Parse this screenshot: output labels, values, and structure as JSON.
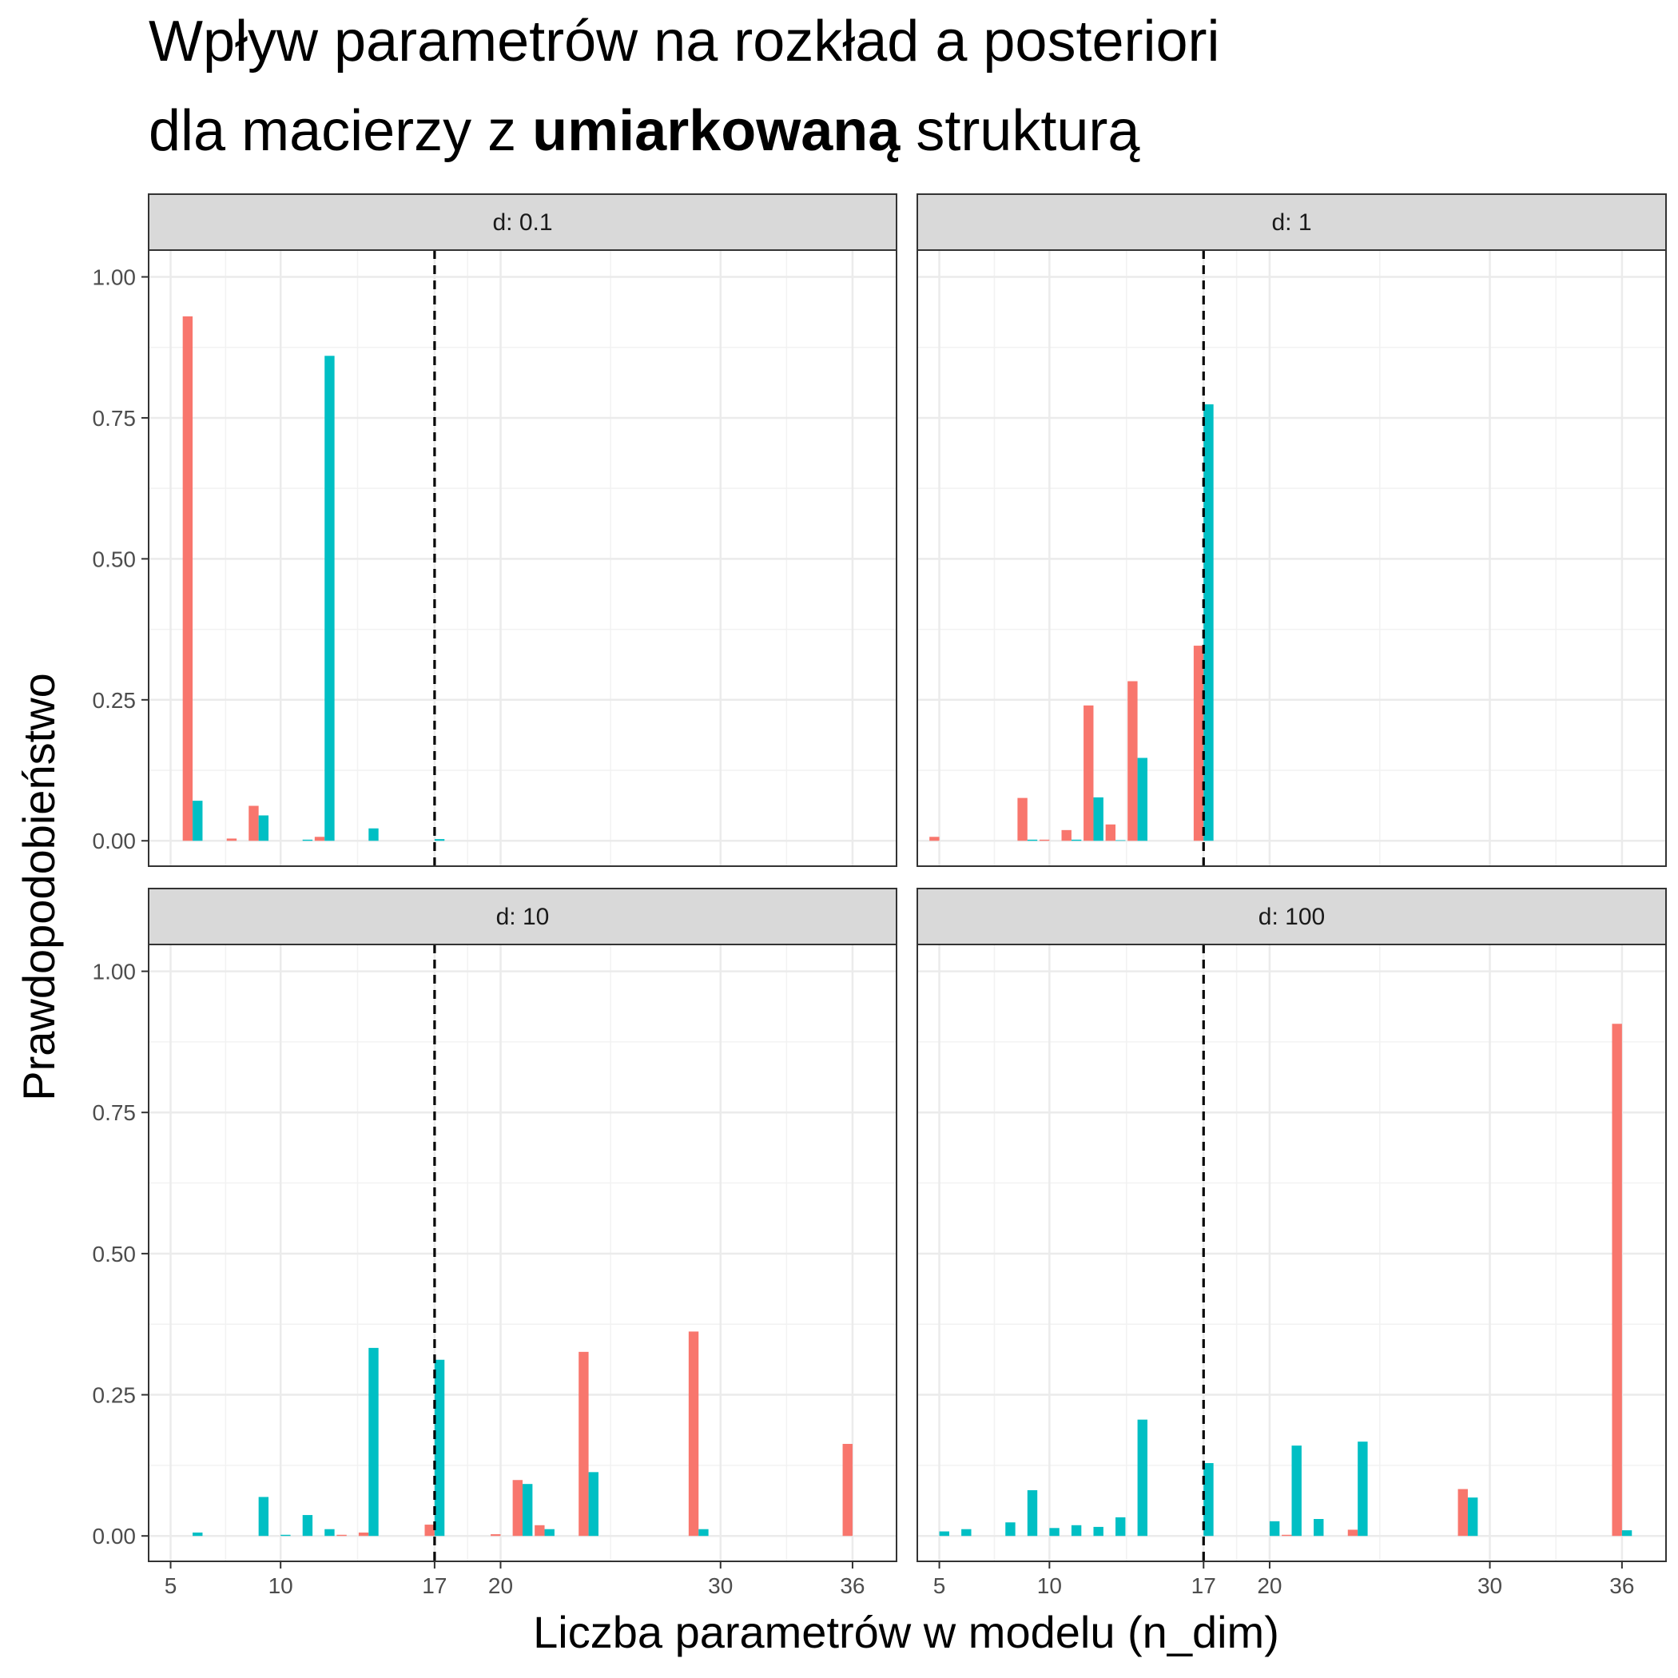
{
  "chart_data": {
    "type": "bar",
    "title_line1": "Wpływ parametrów na rozkład a posteriori",
    "title_line2_before": "dla macierzy z ",
    "title_line2_bold": "umiarkowaną",
    "title_line2_after": " strukturą",
    "xlabel": "Liczba parametrów w modelu (n_dim)",
    "ylabel": "Prawdopodobieństwo",
    "xlim": [
      4,
      38
    ],
    "ylim": [
      -0.045,
      1.0475
    ],
    "x_ticks": [
      5,
      10,
      17,
      20,
      30,
      36
    ],
    "x_tick_labels": [
      "5",
      "10",
      "17",
      "20",
      "30",
      "36"
    ],
    "y_ticks": [
      0,
      0.25,
      0.5,
      0.75,
      1.0
    ],
    "y_tick_labels": [
      "0.00",
      "0.25",
      "0.50",
      "0.75",
      "1.00"
    ],
    "reference_line_x": 17,
    "legend": "none",
    "grid": true,
    "series_colors": [
      "#F8766D",
      "#00BFC4"
    ],
    "panels": [
      {
        "label": "d: 0.1",
        "series": [
          {
            "points": [
              [
                6,
                0.93
              ],
              [
                8,
                0.004
              ],
              [
                9,
                0.062
              ],
              [
                12,
                0.007
              ]
            ]
          },
          {
            "points": [
              [
                6,
                0.071
              ],
              [
                9,
                0.045
              ],
              [
                11,
                0.002
              ],
              [
                12,
                0.86
              ],
              [
                14,
                0.022
              ],
              [
                17,
                0.003
              ]
            ]
          }
        ]
      },
      {
        "label": "d: 1",
        "series": [
          {
            "points": [
              [
                5,
                0.007
              ],
              [
                9,
                0.076
              ],
              [
                10,
                0.002
              ],
              [
                11,
                0.019
              ],
              [
                12,
                0.24
              ],
              [
                13,
                0.029
              ],
              [
                14,
                0.283
              ],
              [
                17,
                0.346
              ]
            ]
          },
          {
            "points": [
              [
                9,
                0.002
              ],
              [
                11,
                0.002
              ],
              [
                12,
                0.077
              ],
              [
                13,
                0.001
              ],
              [
                14,
                0.147
              ],
              [
                17,
                0.774
              ]
            ]
          }
        ]
      },
      {
        "label": "d: 10",
        "series": [
          {
            "points": [
              [
                13,
                0.002
              ],
              [
                14,
                0.006
              ],
              [
                17,
                0.02
              ],
              [
                20,
                0.003
              ],
              [
                21,
                0.099
              ],
              [
                22,
                0.019
              ],
              [
                24,
                0.326
              ],
              [
                29,
                0.362
              ],
              [
                36,
                0.163
              ]
            ]
          },
          {
            "points": [
              [
                6,
                0.006
              ],
              [
                9,
                0.069
              ],
              [
                10,
                0.002
              ],
              [
                11,
                0.037
              ],
              [
                12,
                0.012
              ],
              [
                14,
                0.333
              ],
              [
                17,
                0.312
              ],
              [
                21,
                0.092
              ],
              [
                22,
                0.012
              ],
              [
                24,
                0.113
              ],
              [
                29,
                0.012
              ]
            ]
          }
        ]
      },
      {
        "label": "d: 100",
        "series": [
          {
            "points": [
              [
                21,
                0.002
              ],
              [
                24,
                0.011
              ],
              [
                29,
                0.083
              ],
              [
                36,
                0.907
              ]
            ]
          },
          {
            "points": [
              [
                5,
                0.008
              ],
              [
                6,
                0.012
              ],
              [
                8,
                0.024
              ],
              [
                9,
                0.081
              ],
              [
                10,
                0.014
              ],
              [
                11,
                0.019
              ],
              [
                12,
                0.016
              ],
              [
                13,
                0.033
              ],
              [
                14,
                0.206
              ],
              [
                17,
                0.129
              ],
              [
                20,
                0.026
              ],
              [
                21,
                0.16
              ],
              [
                22,
                0.03
              ],
              [
                24,
                0.167
              ],
              [
                29,
                0.068
              ],
              [
                36,
                0.01
              ]
            ]
          }
        ]
      }
    ]
  }
}
